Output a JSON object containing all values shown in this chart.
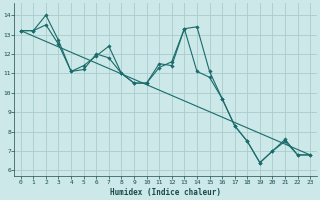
{
  "xlabel": "Humidex (Indice chaleur)",
  "ylabel": "",
  "background_color": "#cce8e8",
  "grid_color": "#aacccc",
  "line_color": "#1a6b6b",
  "xlim": [
    -0.5,
    23.5
  ],
  "ylim": [
    5.7,
    14.6
  ],
  "yticks": [
    6,
    7,
    8,
    9,
    10,
    11,
    12,
    13,
    14
  ],
  "xticks": [
    0,
    1,
    2,
    3,
    4,
    5,
    6,
    7,
    8,
    9,
    10,
    11,
    12,
    13,
    14,
    15,
    16,
    17,
    18,
    19,
    20,
    21,
    22,
    23
  ],
  "line1_x": [
    0,
    1,
    2,
    3,
    4,
    5,
    6,
    7,
    8,
    9,
    10,
    11,
    12,
    13,
    14,
    15,
    16,
    17,
    18,
    19,
    20,
    21,
    22,
    23
  ],
  "line1_y": [
    13.2,
    13.2,
    14.0,
    12.7,
    11.1,
    11.2,
    12.0,
    11.8,
    11.0,
    10.5,
    10.5,
    11.5,
    11.4,
    13.3,
    13.4,
    11.1,
    9.7,
    8.3,
    7.5,
    6.4,
    7.0,
    7.5,
    6.8,
    6.8
  ],
  "line2_x": [
    0,
    1,
    2,
    3,
    4,
    5,
    6,
    7,
    8,
    9,
    10,
    11,
    12,
    13,
    14,
    15,
    16,
    17,
    18,
    19,
    20,
    21,
    22,
    23
  ],
  "line2_y": [
    13.2,
    13.2,
    13.5,
    12.5,
    11.1,
    11.4,
    11.9,
    12.4,
    11.0,
    10.5,
    10.5,
    11.3,
    11.6,
    13.3,
    11.1,
    10.8,
    9.7,
    8.3,
    7.5,
    6.4,
    7.0,
    7.6,
    6.8,
    6.8
  ],
  "line3_x": [
    0,
    23
  ],
  "line3_y": [
    13.2,
    6.8
  ]
}
